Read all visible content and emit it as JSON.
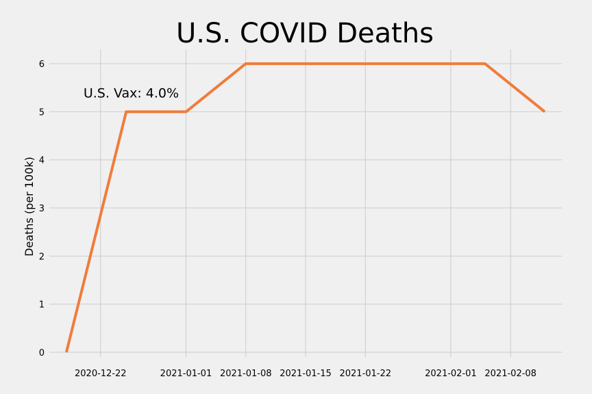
{
  "chart_data": {
    "type": "line",
    "title": "U.S. COVID Deaths",
    "xlabel": "",
    "ylabel": "Deaths (per 100k)",
    "x_ticks": [
      "2020-12-22",
      "2021-01-01",
      "2021-01-08",
      "2021-01-15",
      "2021-01-22",
      "2021-02-01",
      "2021-02-08"
    ],
    "y_ticks": [
      0,
      1,
      2,
      3,
      4,
      5,
      6
    ],
    "xlim": [
      "2020-12-16",
      "2021-02-14"
    ],
    "ylim": [
      -0.1,
      6.3
    ],
    "grid": true,
    "series": [
      {
        "color": "#f07c3b",
        "x": [
          "2020-12-18",
          "2020-12-25",
          "2021-01-01",
          "2021-01-08",
          "2021-01-15",
          "2021-01-22",
          "2021-01-29",
          "2021-02-05",
          "2021-02-12"
        ],
        "y": [
          0,
          5,
          5,
          6,
          6,
          6,
          6,
          6,
          5
        ]
      }
    ],
    "annotations": [
      {
        "text": "U.S. Vax: 4.0%",
        "x": "2020-12-20",
        "y": 5.4
      }
    ]
  }
}
